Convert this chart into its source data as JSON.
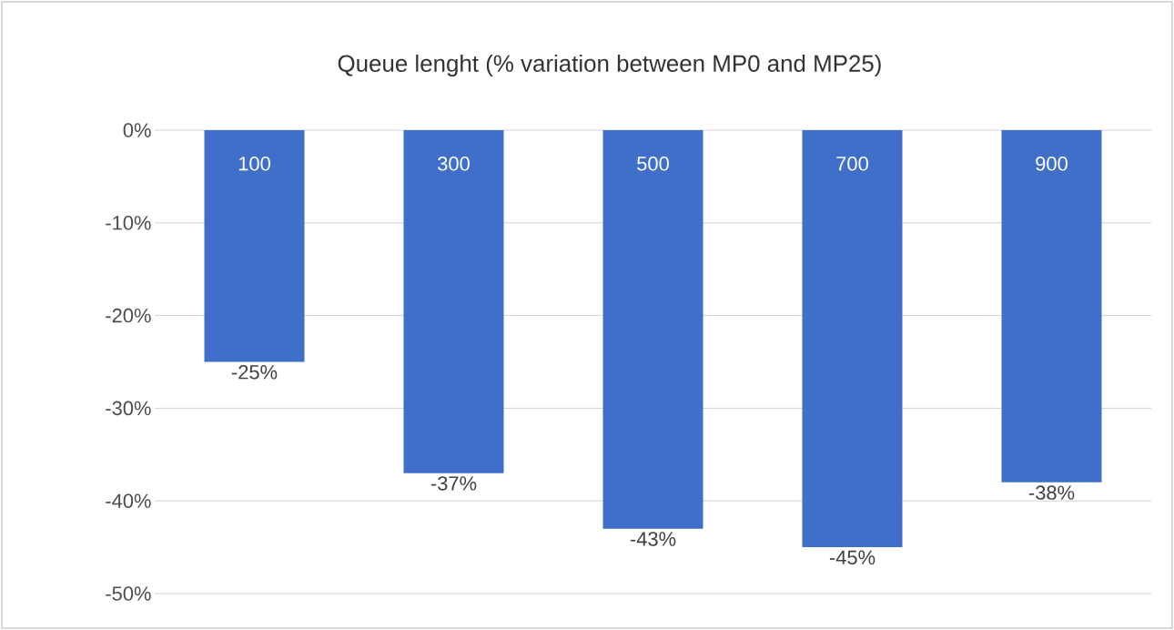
{
  "chart_data": {
    "type": "bar",
    "title": "Queue lenght (% variation between MP0 and MP25)",
    "categories": [
      "100",
      "300",
      "500",
      "700",
      "900"
    ],
    "values": [
      -25,
      -37,
      -43,
      -45,
      -38
    ],
    "value_labels": [
      "-25%",
      "-37%",
      "-43%",
      "-45%",
      "-38%"
    ],
    "color": "#3f6fc9",
    "ylim": [
      -50,
      0
    ],
    "yticks": [
      {
        "value": 0,
        "label": "0%"
      },
      {
        "value": -10,
        "label": "-10%"
      },
      {
        "value": -20,
        "label": "-20%"
      },
      {
        "value": -30,
        "label": "-30%"
      },
      {
        "value": -40,
        "label": "-40%"
      },
      {
        "value": -50,
        "label": "-50%"
      }
    ],
    "grid": "y"
  }
}
